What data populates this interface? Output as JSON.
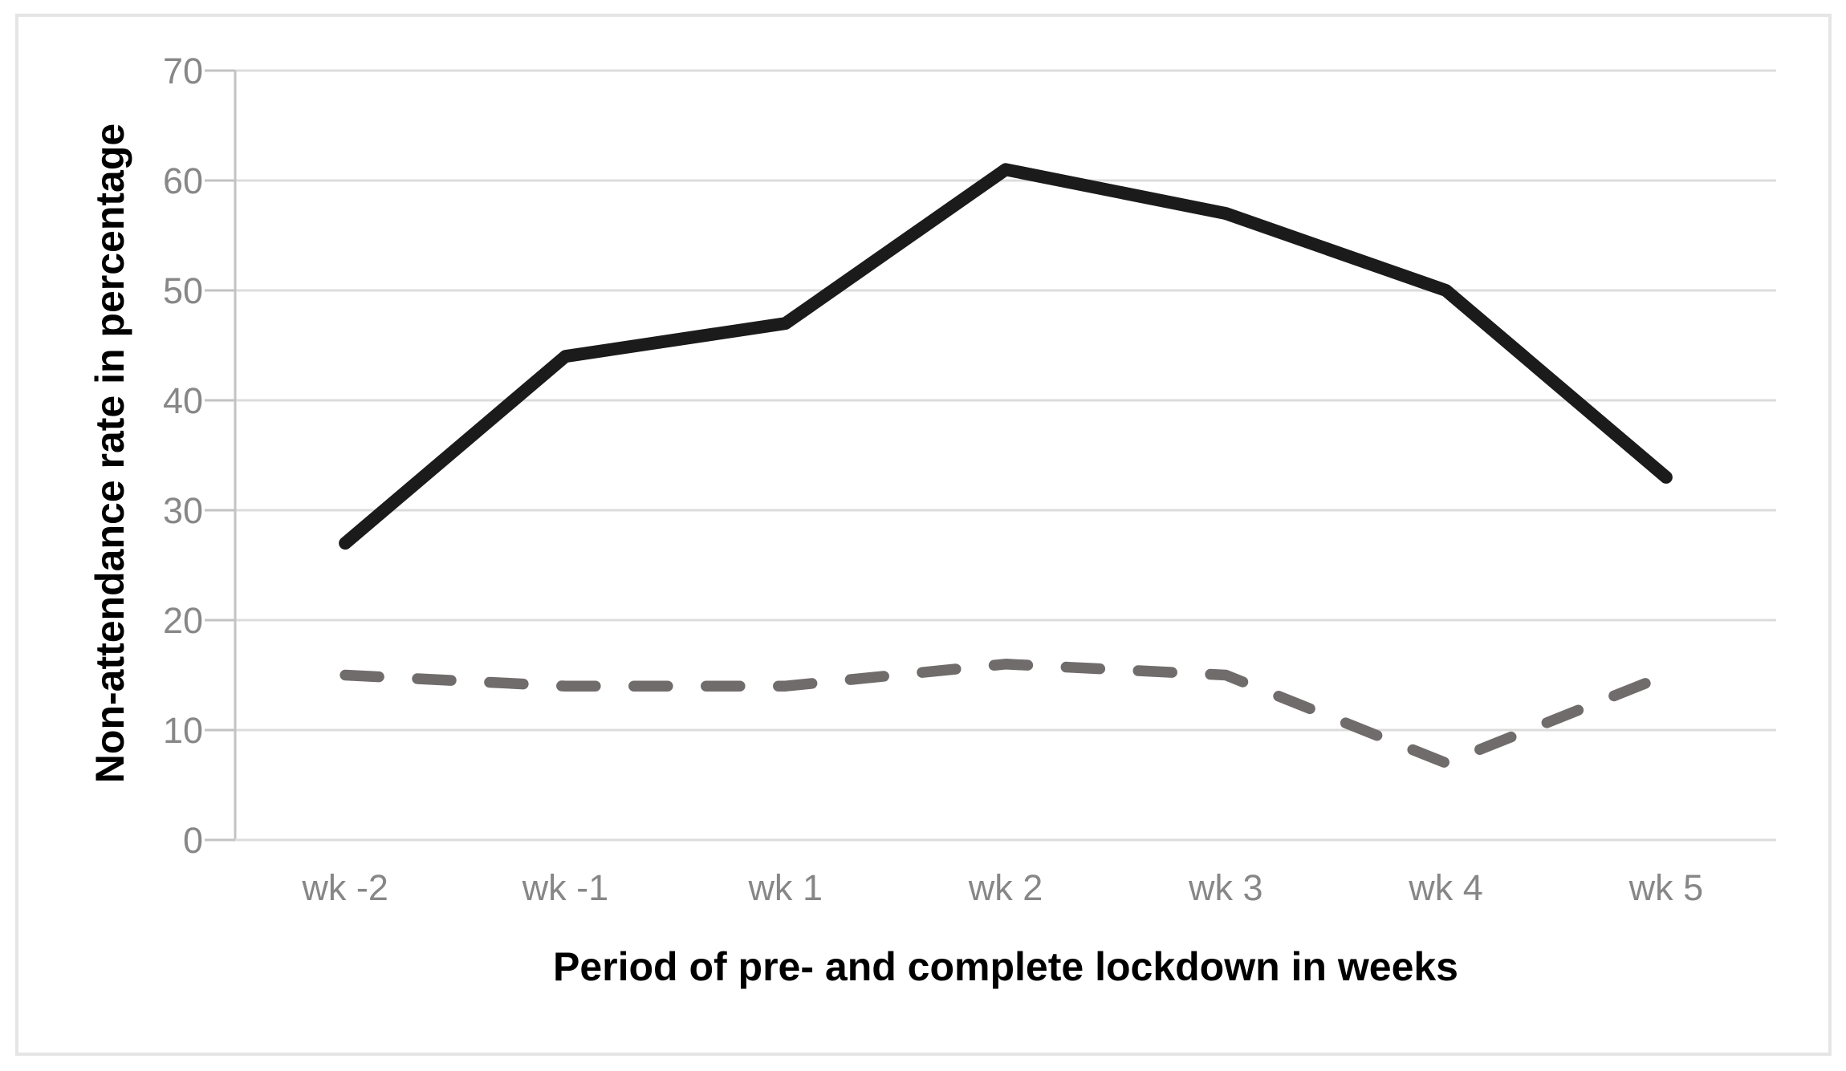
{
  "chart_data": {
    "type": "line",
    "title": "",
    "categories": [
      "wk -2",
      "wk -1",
      "wk 1",
      "wk 2",
      "wk 3",
      "wk 4",
      "wk 5"
    ],
    "series": [
      {
        "name": "solid black line",
        "style": "solid",
        "color": "#1b1b1b",
        "values": [
          27,
          44,
          47,
          61,
          57,
          50,
          33
        ]
      },
      {
        "name": "dashed gray line",
        "style": "dashed",
        "color": "#716c6c",
        "values": [
          15,
          14,
          14,
          16,
          15,
          7,
          15
        ]
      }
    ],
    "xlabel": "Period of pre- and complete lockdown in weeks",
    "ylabel": "Non-attendance rate in percentage",
    "yticks": [
      0,
      10,
      20,
      30,
      40,
      50,
      60,
      70
    ],
    "ylim": [
      0,
      70
    ],
    "grid": true,
    "legend": "none"
  },
  "colors": {
    "background": "#ffffff",
    "chart_border": "#e5e5e5",
    "gridline": "#dcdcdc",
    "axis_line": "#c3c3c3",
    "tick_label": "#878787",
    "axis_title": "#0d0d0d"
  }
}
